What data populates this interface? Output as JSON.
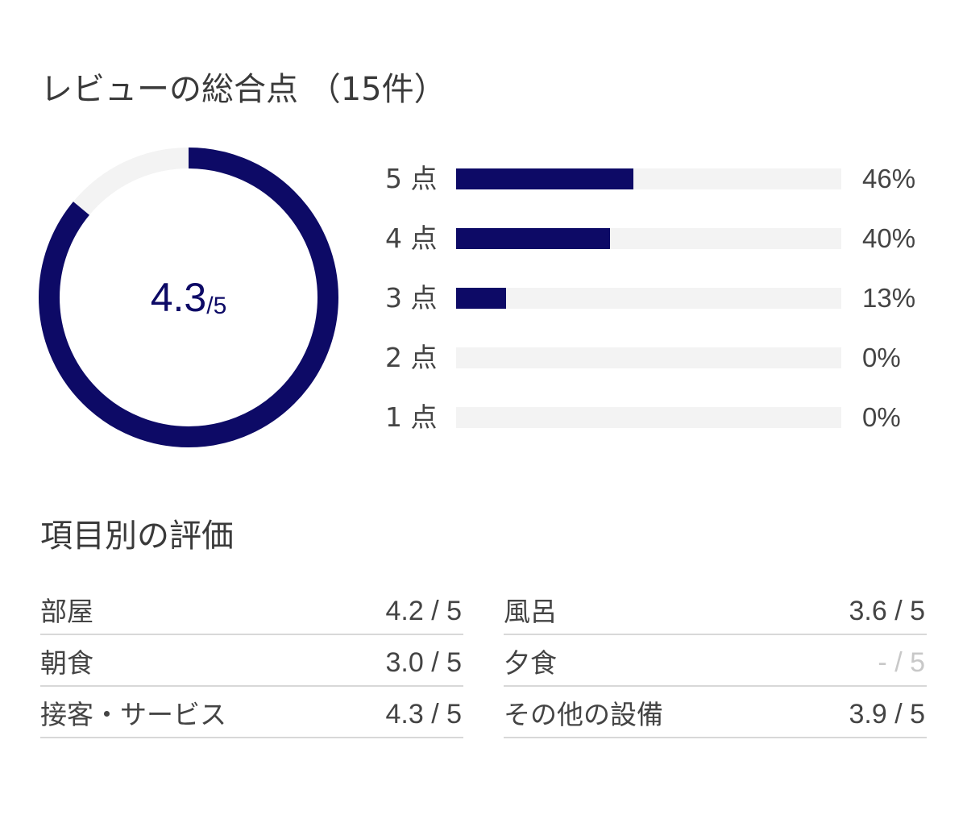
{
  "overall": {
    "title": "レビューの総合点 （15件）",
    "score": "4.3",
    "max": "/5",
    "score_value": 4.3,
    "max_value": 5,
    "colors": {
      "accent": "#0d0a66",
      "track": "#f3f3f3"
    }
  },
  "distribution": [
    {
      "label": "5 点",
      "percent": "46%",
      "fraction": 0.46
    },
    {
      "label": "4 点",
      "percent": "40%",
      "fraction": 0.4
    },
    {
      "label": "3 点",
      "percent": "13%",
      "fraction": 0.13
    },
    {
      "label": "2 点",
      "percent": "0%",
      "fraction": 0
    },
    {
      "label": "1 点",
      "percent": "0%",
      "fraction": 0
    }
  ],
  "categories": {
    "title": "項目別の評価",
    "left": [
      {
        "name": "部屋",
        "value": "4.2 / 5"
      },
      {
        "name": "朝食",
        "value": "3.0 / 5"
      },
      {
        "name": "接客・サービス",
        "value": "4.3 / 5"
      }
    ],
    "right": [
      {
        "name": "風呂",
        "value": "3.6 / 5"
      },
      {
        "name": "夕食",
        "value": "- / 5",
        "not_rated": true
      },
      {
        "name": "その他の設備",
        "value": "3.9 / 5"
      }
    ]
  }
}
